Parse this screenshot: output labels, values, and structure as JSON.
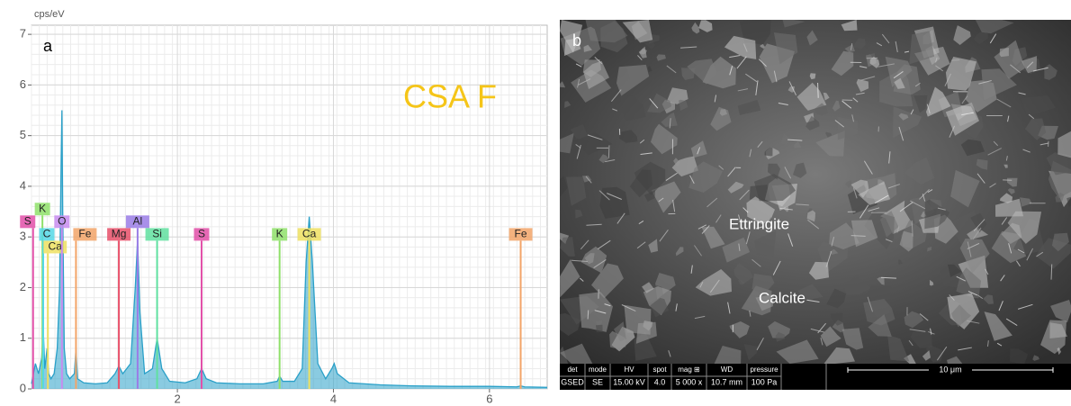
{
  "chart_data": {
    "type": "area",
    "panel_label": "a",
    "annotation": "CSA F",
    "y_label": "cps/eV",
    "color": "#2aa0c8",
    "x": [
      0.13,
      0.18,
      0.22,
      0.26,
      0.28,
      0.3,
      0.33,
      0.35,
      0.38,
      0.42,
      0.46,
      0.49,
      0.51,
      0.52,
      0.53,
      0.55,
      0.58,
      0.62,
      0.68,
      0.7,
      0.72,
      0.8,
      0.95,
      1.1,
      1.2,
      1.25,
      1.3,
      1.4,
      1.46,
      1.49,
      1.52,
      1.58,
      1.68,
      1.74,
      1.8,
      1.9,
      2.1,
      2.25,
      2.31,
      2.37,
      2.5,
      2.8,
      3.1,
      3.28,
      3.31,
      3.35,
      3.5,
      3.6,
      3.65,
      3.69,
      3.73,
      3.8,
      3.9,
      3.98,
      4.01,
      4.05,
      4.2,
      4.6,
      5.0,
      5.5,
      6.0,
      6.35,
      6.4,
      6.45,
      6.74
    ],
    "values": [
      0.1,
      0.5,
      0.3,
      0.6,
      1.2,
      0.4,
      0.8,
      0.3,
      0.2,
      0.3,
      0.8,
      2.0,
      4.5,
      5.5,
      3.5,
      0.8,
      0.3,
      0.2,
      0.3,
      0.8,
      0.2,
      0.12,
      0.1,
      0.12,
      0.3,
      0.45,
      0.3,
      0.5,
      2.0,
      2.95,
      1.5,
      0.3,
      0.4,
      1.0,
      0.4,
      0.15,
      0.12,
      0.2,
      0.4,
      0.2,
      0.12,
      0.1,
      0.1,
      0.15,
      0.25,
      0.15,
      0.15,
      0.4,
      2.5,
      3.4,
      2.5,
      0.5,
      0.2,
      0.4,
      0.5,
      0.3,
      0.12,
      0.08,
      0.06,
      0.05,
      0.05,
      0.04,
      0.06,
      0.04,
      0.03
    ],
    "xlim": [
      0.13,
      6.74
    ],
    "ylim": [
      0,
      7.18
    ],
    "xticks": [
      2,
      4,
      6
    ],
    "yticks": [
      0,
      1,
      2,
      3,
      4,
      5,
      6,
      7
    ],
    "grid": true,
    "markers": [
      {
        "label": "S",
        "x": 0.15,
        "color": "#e24fa8"
      },
      {
        "label": "K",
        "x": 0.27,
        "color": "#8fe06a"
      },
      {
        "label": "C",
        "x": 0.28,
        "color": "#55d8e6"
      },
      {
        "label": "Ca",
        "x": 0.34,
        "color": "#eee060"
      },
      {
        "label": "O",
        "x": 0.52,
        "color": "#c88cf0"
      },
      {
        "label": "Fe",
        "x": 0.7,
        "color": "#f2a468"
      },
      {
        "label": "Mg",
        "x": 1.25,
        "color": "#e8506a"
      },
      {
        "label": "Al",
        "x": 1.49,
        "color": "#9a7ce6"
      },
      {
        "label": "Si",
        "x": 1.74,
        "color": "#60e0a0"
      },
      {
        "label": "S",
        "x": 2.31,
        "color": "#e24fa8"
      },
      {
        "label": "K",
        "x": 3.31,
        "color": "#8fe06a"
      },
      {
        "label": "Ca",
        "x": 3.69,
        "color": "#eee060"
      },
      {
        "label": "Fe",
        "x": 6.4,
        "color": "#f2a468"
      }
    ]
  },
  "image": {
    "panel_label": "b",
    "annotations": [
      "Ettringite",
      "Calcite"
    ],
    "info_bar": {
      "headers": [
        "det",
        "mode",
        "HV",
        "spot",
        "mag ⊞",
        "WD",
        "pressure"
      ],
      "values": [
        "GSED",
        "SE",
        "15.00 kV",
        "4.0",
        "5 000 x",
        "10.7 mm",
        "100 Pa"
      ]
    },
    "scale_bar": "10 μm"
  }
}
